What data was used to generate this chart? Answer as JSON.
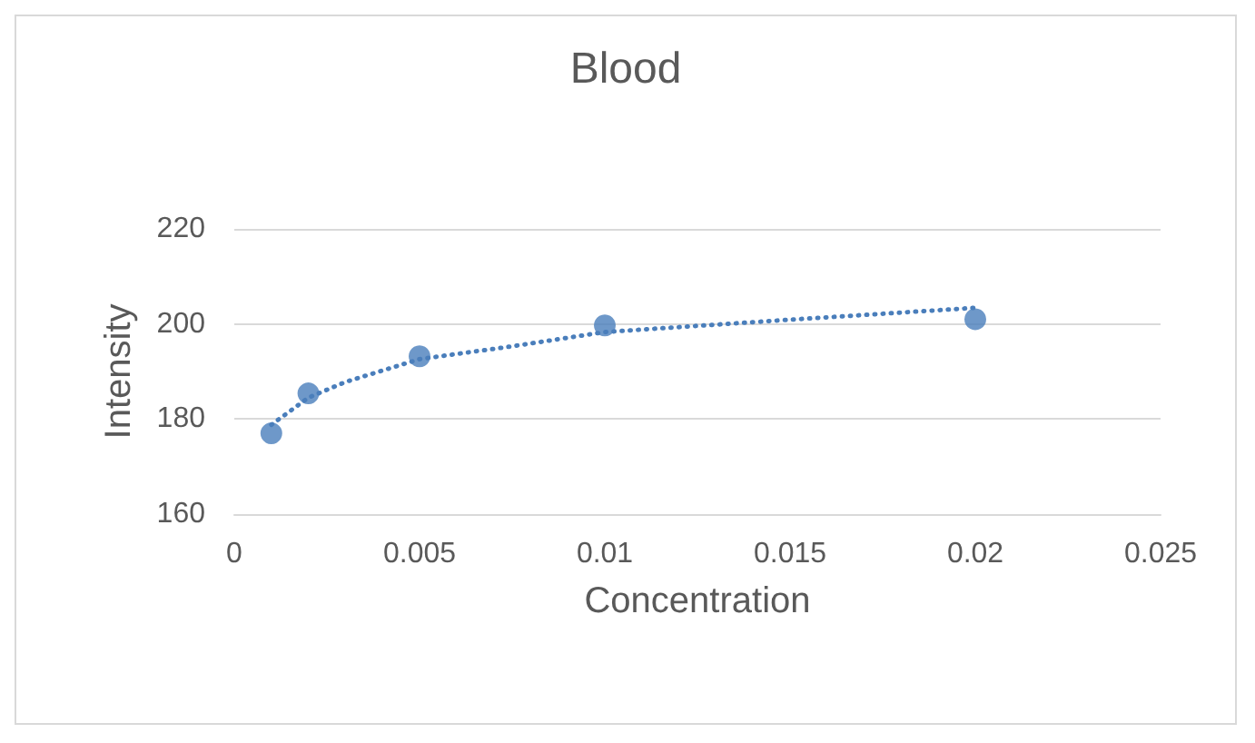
{
  "chart_data": {
    "type": "scatter",
    "title": "Blood",
    "xlabel": "Concentration",
    "ylabel": "Intensity",
    "x": [
      0.001,
      0.002,
      0.005,
      0.01,
      0.02
    ],
    "series": [
      {
        "color": "#4a7ebb",
        "values": [
          177,
          185.4,
          193.2,
          199.7,
          201
        ],
        "marker": "circle"
      },
      {
        "type": "line",
        "color": "#4a7ebb",
        "line_style": "dotted",
        "marker": "none",
        "x": [
          0.001,
          0.002,
          0.003,
          0.005,
          0.0075,
          0.01,
          0.015,
          0.02
        ],
        "values": [
          178.8,
          184.5,
          187.8,
          192.6,
          195.3,
          198.3,
          200.9,
          203.4
        ]
      }
    ],
    "xlim": [
      0,
      0.025
    ],
    "xticks": [
      0,
      0.005,
      0.01,
      0.015,
      0.02,
      0.025
    ],
    "ylim": [
      160,
      220
    ],
    "yticks": [
      160,
      180,
      200,
      220
    ],
    "grid": "y"
  }
}
